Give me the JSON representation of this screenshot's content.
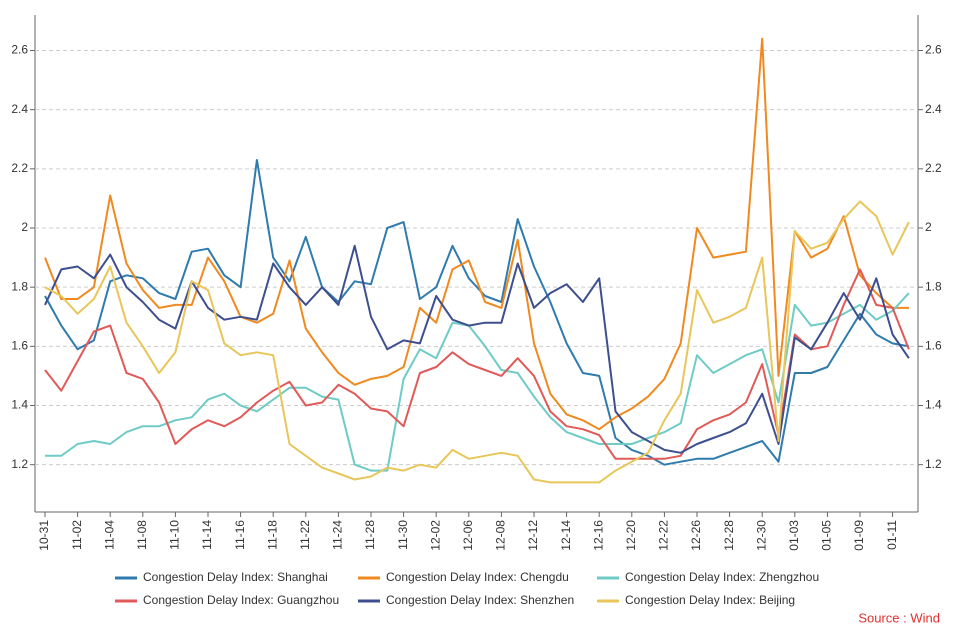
{
  "chart_data": {
    "type": "line",
    "categories": [
      "10-31",
      null,
      "11-02",
      null,
      "11-04",
      null,
      "11-08",
      null,
      "11-10",
      null,
      "11-14",
      null,
      "11-16",
      null,
      "11-18",
      null,
      "11-22",
      null,
      "11-24",
      null,
      "11-28",
      null,
      "11-30",
      null,
      "12-02",
      null,
      "12-06",
      null,
      "12-08",
      null,
      "12-12",
      null,
      "12-14",
      null,
      "12-16",
      null,
      "12-20",
      null,
      "12-22",
      null,
      "12-26",
      null,
      "12-28",
      null,
      "12-30",
      null,
      "01-03",
      null,
      "01-05",
      null,
      "01-09",
      null,
      "01-11",
      null
    ],
    "series": [
      {
        "name": "Congestion Delay Index: Shanghai",
        "color": "#2f7bae",
        "values": [
          1.77,
          1.67,
          1.59,
          1.62,
          1.82,
          1.84,
          1.83,
          1.78,
          1.76,
          1.92,
          1.93,
          1.84,
          1.8,
          2.23,
          1.9,
          1.82,
          1.97,
          1.8,
          1.75,
          1.82,
          1.81,
          2.0,
          2.02,
          1.76,
          1.8,
          1.94,
          1.83,
          1.77,
          1.75,
          2.03,
          1.87,
          1.75,
          1.61,
          1.51,
          1.5,
          1.29,
          1.25,
          1.23,
          1.2,
          1.21,
          1.22,
          1.22,
          1.24,
          1.26,
          1.28,
          1.21,
          1.51,
          1.51,
          1.53,
          1.62,
          1.71,
          1.64,
          1.61,
          1.6
        ]
      },
      {
        "name": "Congestion Delay Index: Chengdu",
        "color": "#f0891f",
        "values": [
          1.9,
          1.76,
          1.76,
          1.8,
          2.11,
          1.88,
          1.79,
          1.73,
          1.74,
          1.74,
          1.9,
          1.82,
          1.7,
          1.68,
          1.71,
          1.89,
          1.66,
          1.58,
          1.51,
          1.47,
          1.49,
          1.5,
          1.53,
          1.73,
          1.68,
          1.86,
          1.89,
          1.75,
          1.73,
          1.96,
          1.61,
          1.44,
          1.37,
          1.35,
          1.32,
          1.36,
          1.39,
          1.43,
          1.49,
          1.61,
          2.0,
          1.9,
          1.91,
          1.92,
          2.64,
          1.5,
          1.99,
          1.9,
          1.93,
          2.04,
          1.84,
          1.78,
          1.73,
          1.73
        ]
      },
      {
        "name": "Congestion Delay Index: Zhengzhou",
        "color": "#6ecbc6",
        "values": [
          1.23,
          1.23,
          1.27,
          1.28,
          1.27,
          1.31,
          1.33,
          1.33,
          1.35,
          1.36,
          1.42,
          1.44,
          1.4,
          1.38,
          1.42,
          1.46,
          1.46,
          1.43,
          1.42,
          1.2,
          1.18,
          1.18,
          1.49,
          1.59,
          1.56,
          1.68,
          1.67,
          1.6,
          1.52,
          1.51,
          1.43,
          1.36,
          1.31,
          1.29,
          1.27,
          1.27,
          1.27,
          1.29,
          1.31,
          1.34,
          1.57,
          1.51,
          1.54,
          1.57,
          1.59,
          1.41,
          1.74,
          1.67,
          1.68,
          1.71,
          1.74,
          1.69,
          1.72,
          1.78
        ]
      },
      {
        "name": "Congestion Delay Index: Guangzhou",
        "color": "#e05a58",
        "values": [
          1.52,
          1.45,
          1.55,
          1.65,
          1.67,
          1.51,
          1.49,
          1.41,
          1.27,
          1.32,
          1.35,
          1.33,
          1.36,
          1.41,
          1.45,
          1.48,
          1.4,
          1.41,
          1.47,
          1.44,
          1.39,
          1.38,
          1.33,
          1.51,
          1.53,
          1.58,
          1.54,
          1.52,
          1.5,
          1.56,
          1.5,
          1.38,
          1.33,
          1.32,
          1.3,
          1.22,
          1.22,
          1.22,
          1.22,
          1.23,
          1.32,
          1.35,
          1.37,
          1.41,
          1.54,
          1.3,
          1.64,
          1.59,
          1.6,
          1.74,
          1.86,
          1.74,
          1.73,
          1.59
        ]
      },
      {
        "name": "Congestion Delay Index: Shenzhen",
        "color": "#3d4f8e",
        "values": [
          1.74,
          1.86,
          1.87,
          1.83,
          1.91,
          1.8,
          1.75,
          1.69,
          1.66,
          1.82,
          1.73,
          1.69,
          1.7,
          1.69,
          1.88,
          1.8,
          1.74,
          1.8,
          1.74,
          1.94,
          1.7,
          1.59,
          1.62,
          1.61,
          1.77,
          1.69,
          1.67,
          1.68,
          1.68,
          1.88,
          1.73,
          1.78,
          1.81,
          1.75,
          1.83,
          1.38,
          1.31,
          1.28,
          1.25,
          1.24,
          1.27,
          1.29,
          1.31,
          1.34,
          1.44,
          1.27,
          1.63,
          1.59,
          1.68,
          1.78,
          1.69,
          1.83,
          1.64,
          1.56
        ]
      },
      {
        "name": "Congestion Delay Index: Beijing",
        "color": "#e8c65a",
        "values": [
          1.8,
          1.77,
          1.71,
          1.76,
          1.87,
          1.68,
          1.6,
          1.51,
          1.58,
          1.82,
          1.79,
          1.61,
          1.57,
          1.58,
          1.57,
          1.27,
          1.23,
          1.19,
          1.17,
          1.15,
          1.16,
          1.19,
          1.18,
          1.2,
          1.19,
          1.25,
          1.22,
          1.23,
          1.24,
          1.23,
          1.15,
          1.14,
          1.14,
          1.14,
          1.14,
          1.18,
          1.21,
          1.24,
          1.35,
          1.44,
          1.79,
          1.68,
          1.7,
          1.73,
          1.9,
          1.28,
          1.99,
          1.93,
          1.95,
          2.03,
          2.09,
          2.04,
          1.91,
          2.02
        ]
      }
    ],
    "ylim": [
      1.04,
      2.72
    ],
    "yticks": [
      1.2,
      1.4,
      1.6,
      1.8,
      2,
      2.2,
      2.4,
      2.6
    ],
    "y2lim": [
      1.04,
      2.72
    ],
    "y2ticks": [
      1.2,
      1.4,
      1.6,
      1.8,
      2,
      2.2,
      2.4,
      2.6
    ],
    "grid": true,
    "legend": "bottom",
    "source": "Source : Wind"
  }
}
